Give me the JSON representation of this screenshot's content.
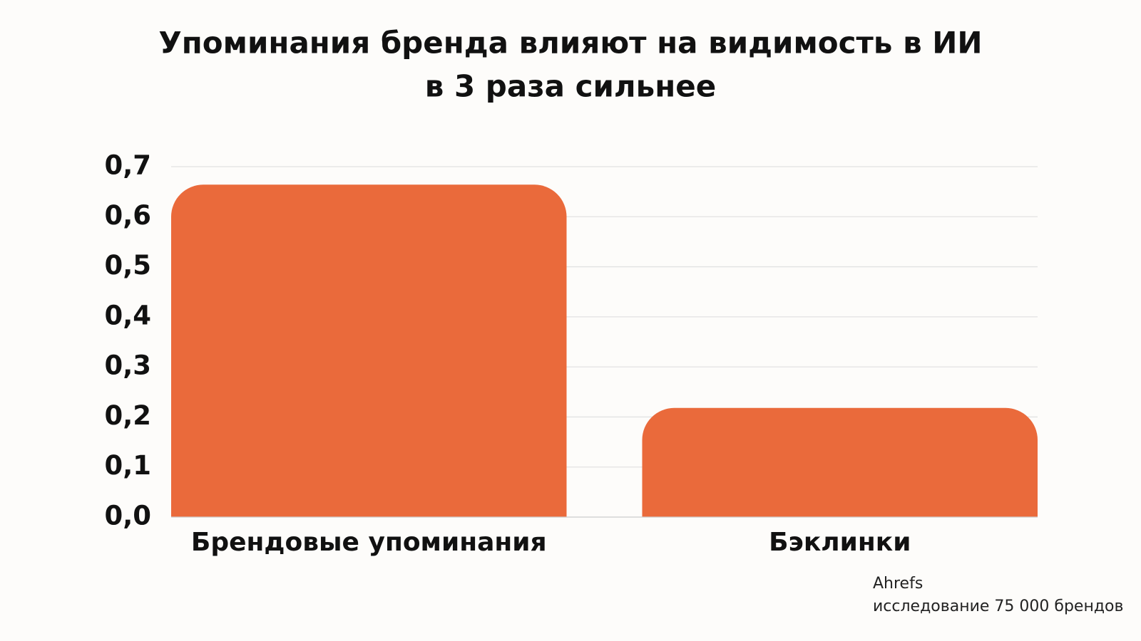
{
  "chart_data": {
    "type": "bar",
    "title": [
      "Упоминания бренда влияют на видимость в ИИ",
      "в 3 раза сильнее"
    ],
    "categories": [
      "Брендовые упоминания",
      "Бэклинки"
    ],
    "values": [
      0.664,
      0.218
    ],
    "color": "#ea6a3b",
    "ylim": [
      0,
      0.7
    ],
    "yticks": [
      {
        "value": 0,
        "label": "0,0"
      },
      {
        "value": 0.1,
        "label": "0,1"
      },
      {
        "value": 0.2,
        "label": "0,2"
      },
      {
        "value": 0.3,
        "label": "0,3"
      },
      {
        "value": 0.4,
        "label": "0,4"
      },
      {
        "value": 0.5,
        "label": "0,5"
      },
      {
        "value": 0.6,
        "label": "0,6"
      },
      {
        "value": 0.7,
        "label": "0,7"
      }
    ],
    "grid": true,
    "source": [
      "Ahrefs",
      "исследование 75 000 брендов"
    ]
  }
}
